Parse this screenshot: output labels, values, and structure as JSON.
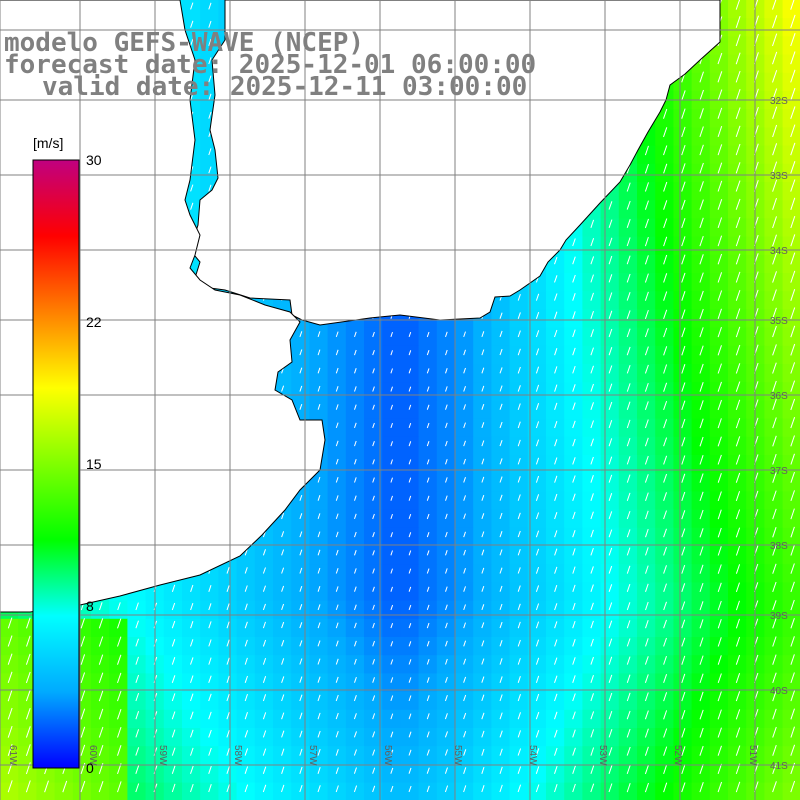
{
  "title": {
    "model": "modelo GEFS-WAVE (NCEP)",
    "forecast_date": "forecast date: 2025-12-01 06:00:00",
    "valid_date": "valid date: 2025-12-11 03:00:00"
  },
  "colorbar": {
    "unit": "[m/s]",
    "min": 0,
    "max": 30,
    "tick_labels": [
      "30",
      "22",
      "15",
      "8",
      "0"
    ],
    "tick_values": [
      30,
      22,
      15,
      8,
      0
    ],
    "colors": [
      "#0000ff",
      "#00aaff",
      "#00ffff",
      "#00ff00",
      "#80ff00",
      "#ffff00",
      "#ff8000",
      "#ff0000",
      "#c00080"
    ]
  },
  "latitude_labels": [
    "32S",
    "33S",
    "34S",
    "35S",
    "36S",
    "37S",
    "38S",
    "39S",
    "40S",
    "41S"
  ],
  "longitude_labels": [
    "61W",
    "60W",
    "59W",
    "58W",
    "57W",
    "56W",
    "55W",
    "54W",
    "53W",
    "52W",
    "51W"
  ],
  "colors": {
    "land": "#ffffff",
    "coastline": "#000000",
    "grid": "#808080",
    "vectors": "#ffffff",
    "title_text": "#808080"
  }
}
